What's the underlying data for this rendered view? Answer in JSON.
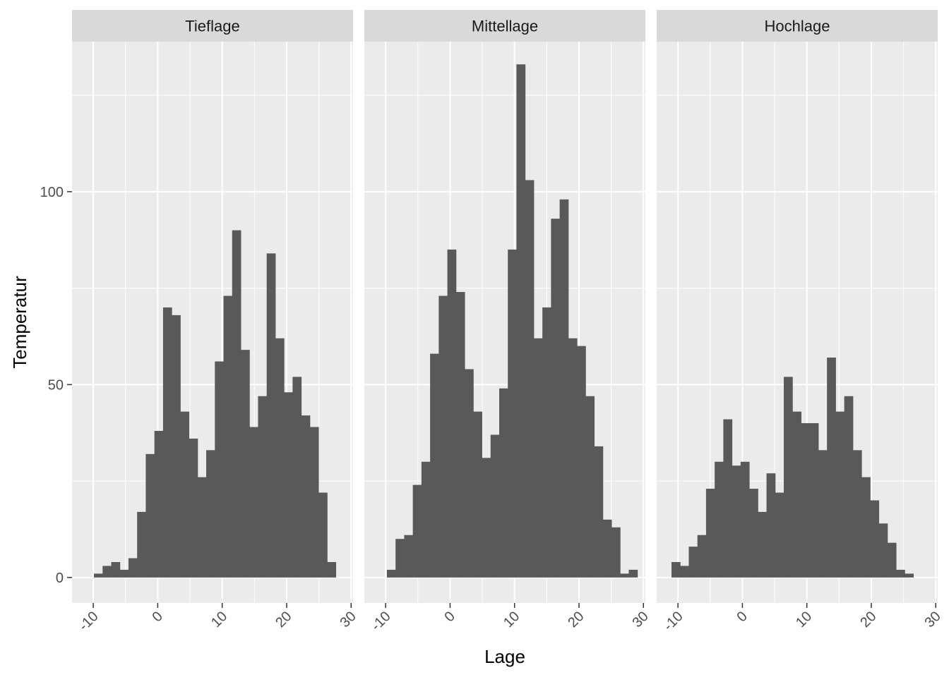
{
  "chart_data": {
    "type": "bar",
    "subtype": "faceted-histogram",
    "xlabel": "Lage",
    "ylabel": "Temperatur",
    "xlim": [
      -13.3,
      30.3
    ],
    "ylim": [
      -6.6,
      138.9
    ],
    "x_ticks": [
      -10,
      0,
      10,
      20,
      30
    ],
    "x_tick_labels": [
      "-10",
      "0",
      "10",
      "20",
      "30"
    ],
    "y_ticks": [
      0,
      50,
      100
    ],
    "y_tick_labels": [
      "0",
      "50",
      "100"
    ],
    "bin_width": 1.34,
    "grid": true,
    "facets": [
      {
        "name": "Tieflage",
        "first_bin_left": -9.9,
        "values": [
          1,
          3,
          4,
          2,
          5,
          17,
          32,
          38,
          70,
          68,
          43,
          36,
          26,
          33,
          56,
          73,
          90,
          59,
          39,
          47,
          84,
          62,
          48,
          52,
          42,
          39,
          22,
          4
        ]
      },
      {
        "name": "Mittellage",
        "first_bin_left": -9.8,
        "values": [
          2,
          10,
          11,
          24,
          30,
          58,
          73,
          85,
          74,
          54,
          43,
          31,
          37,
          49,
          85,
          133,
          103,
          62,
          70,
          93,
          98,
          62,
          60,
          47,
          34,
          15,
          13,
          1,
          2
        ]
      },
      {
        "name": "Hochlage",
        "first_bin_left": -11.0,
        "values": [
          4,
          3,
          8,
          11,
          23,
          30,
          41,
          29,
          30,
          23,
          17,
          27,
          22,
          52,
          43,
          40,
          40,
          33,
          57,
          43,
          47,
          33,
          26,
          20,
          14,
          9,
          2,
          1
        ]
      }
    ]
  },
  "colors": {
    "panel_bg": "#ebebeb",
    "strip_bg": "#d9d9d9",
    "bar_fill": "#595959",
    "grid": "#ffffff",
    "tick": "#333333"
  }
}
